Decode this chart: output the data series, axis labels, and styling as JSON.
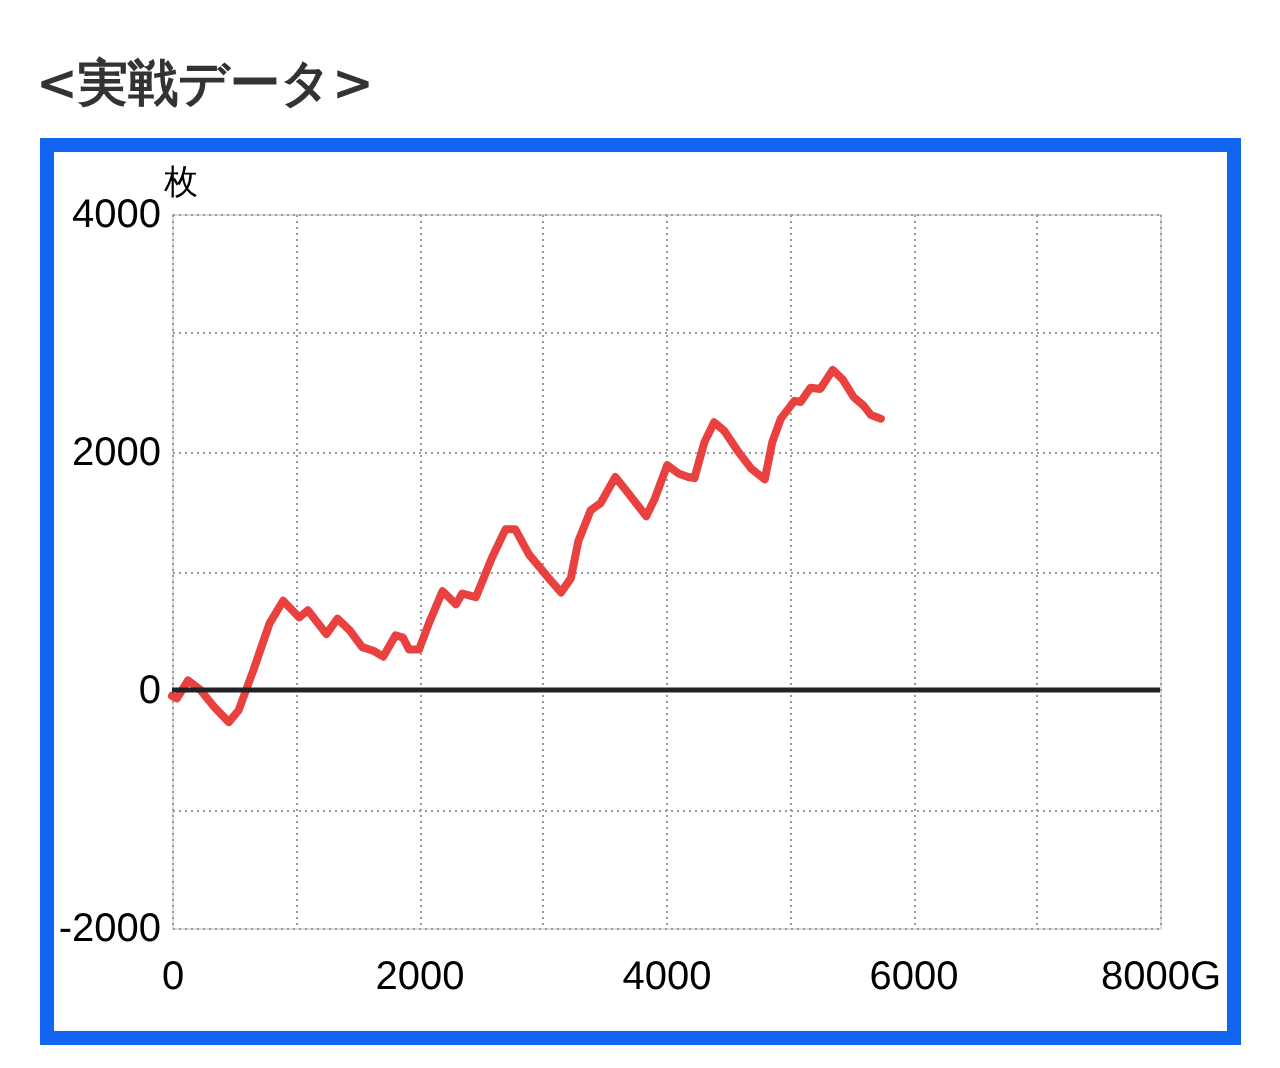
{
  "chart_data": {
    "type": "line",
    "title": "<実戦データ>",
    "ylabel": "枚",
    "x": [
      0,
      40,
      130,
      230,
      340,
      460,
      540,
      660,
      790,
      900,
      1030,
      1100,
      1250,
      1340,
      1440,
      1540,
      1630,
      1710,
      1810,
      1870,
      1920,
      2000,
      2080,
      2190,
      2300,
      2350,
      2460,
      2590,
      2700,
      2780,
      2890,
      3050,
      3150,
      3230,
      3290,
      3390,
      3470,
      3590,
      3690,
      3840,
      3910,
      4010,
      4100,
      4180,
      4230,
      4310,
      4390,
      4470,
      4580,
      4690,
      4800,
      4860,
      4930,
      5040,
      5090,
      5170,
      5250,
      5350,
      5430,
      5520,
      5600,
      5660,
      5740
    ],
    "series": [
      {
        "color": "#e8413f",
        "values": [
          -50,
          -70,
          80,
          0,
          -140,
          -270,
          -170,
          170,
          560,
          750,
          610,
          670,
          470,
          600,
          500,
          360,
          330,
          280,
          460,
          440,
          340,
          340,
          560,
          830,
          720,
          810,
          780,
          1110,
          1350,
          1350,
          1140,
          940,
          820,
          940,
          1250,
          1510,
          1570,
          1790,
          1660,
          1460,
          1610,
          1890,
          1820,
          1790,
          1780,
          2080,
          2250,
          2180,
          2010,
          1860,
          1770,
          2080,
          2280,
          2430,
          2420,
          2540,
          2530,
          2690,
          2610,
          2460,
          2390,
          2310,
          2280
        ]
      }
    ],
    "xlim": [
      0,
      8000
    ],
    "ylim": [
      -2000,
      4000
    ],
    "xticks": [
      0,
      {
        "value": 1000,
        "label": null
      },
      2000,
      {
        "value": 3000,
        "label": null
      },
      4000,
      {
        "value": 5000,
        "label": null
      },
      6000,
      {
        "value": 7000,
        "label": null
      },
      {
        "value": 8000,
        "label": "8000G"
      }
    ],
    "yticks": [
      -2000,
      {
        "value": -1000,
        "label": null
      },
      0,
      {
        "value": 1000,
        "label": null
      },
      2000,
      {
        "value": 3000,
        "label": null
      },
      4000
    ],
    "grid": true,
    "marker": "none",
    "line_style": "solid",
    "ref_lines": [
      {
        "axis": "y",
        "value": 0,
        "color": "#222222"
      }
    ]
  }
}
